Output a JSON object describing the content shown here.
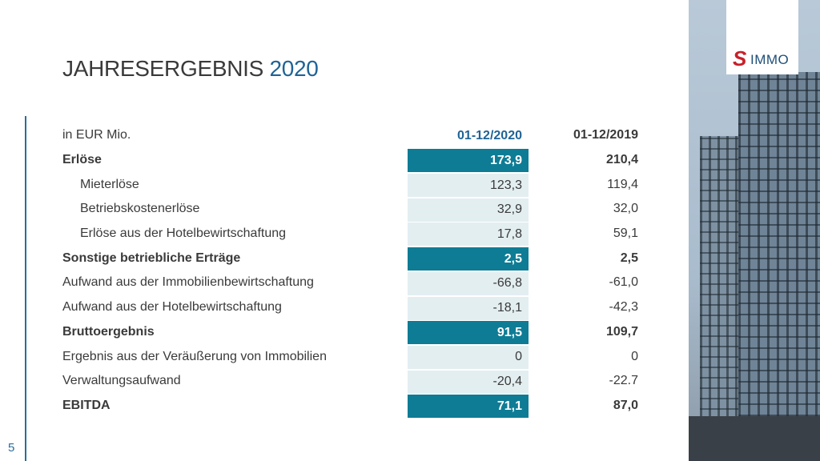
{
  "title": {
    "main": "JAHRESERGEBNIS",
    "year": "2020"
  },
  "page_number": "5",
  "logo": {
    "text": "SIMMO",
    "color_s": "#c8202a"
  },
  "colors": {
    "accent": "#0e7c95",
    "light_cell": "#e3eef1",
    "title_blue": "#1f6396"
  },
  "table": {
    "unit_label": "in EUR Mio.",
    "columns": [
      "01-12/2020",
      "01-12/2019"
    ],
    "rows": [
      {
        "label": "Erlöse",
        "v2020": "173,9",
        "v2019": "210,4",
        "bold": true
      },
      {
        "label": "Mieterlöse",
        "v2020": "123,3",
        "v2019": "119,4"
      },
      {
        "label": "Betriebskostenerlöse",
        "v2020": "32,9",
        "v2019": "32,0"
      },
      {
        "label": "Erlöse aus der Hotelbewirtschaftung",
        "v2020": "17,8",
        "v2019": "59,1"
      },
      {
        "label": "Sonstige betriebliche Erträge",
        "v2020": "2,5",
        "v2019": "2,5",
        "bold": true
      },
      {
        "label": "Aufwand aus der Immobilienbewirtschaftung",
        "v2020": "-66,8",
        "v2019": "-61,0"
      },
      {
        "label": "Aufwand aus der Hotelbewirtschaftung",
        "v2020": "-18,1",
        "v2019": "-42,3"
      },
      {
        "label": "Bruttoergebnis",
        "v2020": "91,5",
        "v2019": "109,7",
        "bold": true
      },
      {
        "label": "Ergebnis aus der Veräußerung von Immobilien",
        "v2020": "0",
        "v2019": "0"
      },
      {
        "label": "Verwaltungsaufwand",
        "v2020": "-20,4",
        "v2019": "-22.7"
      },
      {
        "label": "EBITDA",
        "v2020": "71,1",
        "v2019": "87,0",
        "bold": true
      }
    ]
  }
}
